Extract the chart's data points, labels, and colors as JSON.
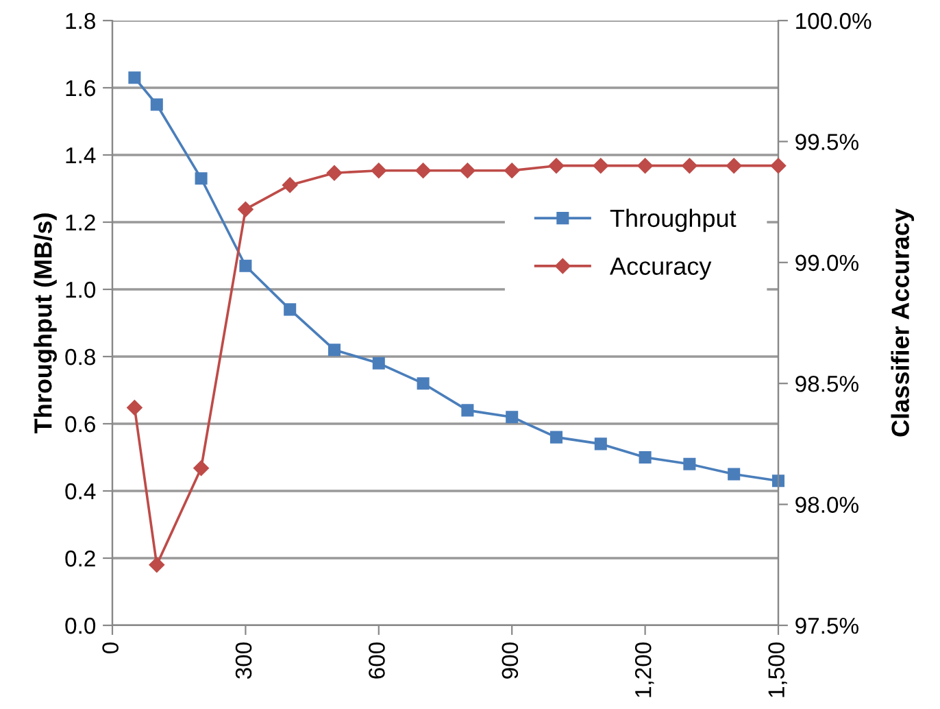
{
  "chart_data": {
    "type": "line",
    "x": [
      50,
      100,
      200,
      300,
      400,
      500,
      600,
      700,
      800,
      900,
      1000,
      1100,
      1200,
      1300,
      1400,
      1500
    ],
    "series": [
      {
        "name": "Throughput",
        "color": "#4a7ebb",
        "marker": "square",
        "values": [
          1.63,
          1.55,
          1.33,
          1.07,
          0.94,
          0.82,
          0.78,
          0.72,
          0.64,
          0.62,
          0.56,
          0.54,
          0.5,
          0.48,
          0.45,
          0.43
        ]
      },
      {
        "name": "Accuracy",
        "color": "#be4b48",
        "marker": "diamond",
        "axis": "y2",
        "values": [
          98.4,
          97.75,
          98.15,
          99.22,
          99.32,
          99.37,
          99.38,
          99.38,
          99.38,
          99.38,
          99.4,
          99.4,
          99.4,
          99.4,
          99.4,
          99.4
        ]
      }
    ],
    "ylabel": "Throughput (MB/s)",
    "y2label": "Classifier Accuracy",
    "xlim": [
      0,
      1500
    ],
    "xticks": [
      0,
      300,
      600,
      900,
      {
        "value": 1200,
        "label": "1,200"
      },
      {
        "value": 1500,
        "label": "1,500"
      }
    ],
    "ylim": [
      0,
      1.8
    ],
    "yticks": [
      {
        "value": 0,
        "label": "0.0"
      },
      {
        "value": 0.2,
        "label": "0.2"
      },
      {
        "value": 0.4,
        "label": "0.4"
      },
      {
        "value": 0.6,
        "label": "0.6"
      },
      {
        "value": 0.8,
        "label": "0.8"
      },
      {
        "value": 1.0,
        "label": "1.0"
      },
      {
        "value": 1.2,
        "label": "1.2"
      },
      {
        "value": 1.4,
        "label": "1.4"
      },
      {
        "value": 1.6,
        "label": "1.6"
      },
      {
        "value": 1.8,
        "label": "1.8"
      }
    ],
    "y2lim": [
      97.5,
      100
    ],
    "y2ticks": [
      {
        "value": 97.5,
        "label": "97.5%"
      },
      {
        "value": 98.0,
        "label": "98.0%"
      },
      {
        "value": 98.5,
        "label": "98.5%"
      },
      {
        "value": 99.0,
        "label": "99.0%"
      },
      {
        "value": 99.5,
        "label": "99.5%"
      },
      {
        "value": 100,
        "label": "100.0%"
      }
    ],
    "grid": "y",
    "legend": "right",
    "line_style": "solid"
  }
}
